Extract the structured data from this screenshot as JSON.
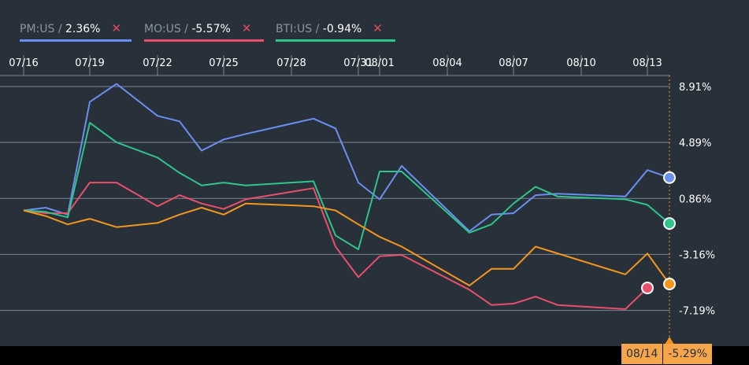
{
  "legend": [
    {
      "ticker": "PM:US",
      "sep": " / ",
      "value": "2.36%",
      "color": "#6a8ff0",
      "close": "✕"
    },
    {
      "ticker": "MO:US",
      "sep": " / ",
      "value": "-5.57%",
      "color": "#e94f6a",
      "close": "✕"
    },
    {
      "ticker": "BTI:US",
      "sep": " / ",
      "value": "-0.94%",
      "color": "#2ec48a",
      "close": "✕"
    }
  ],
  "tooltip": {
    "date": "08/14",
    "value": "-5.29%"
  },
  "colors": {
    "bg": "#28303a",
    "grid": "#7d858f",
    "text": "#ffffff",
    "orange": "#f5961c",
    "crosshair": "#f5961c"
  },
  "chart_data": {
    "type": "line",
    "x_ticks": [
      "07/16",
      "07/19",
      "07/22",
      "07/25",
      "07/28",
      "07/31",
      "08/01",
      "08/04",
      "08/07",
      "08/10",
      "08/13"
    ],
    "y_ticks": [
      "8.91%",
      "4.89%",
      "0.86%",
      "-3.16%",
      "-7.19%"
    ],
    "y_tick_values": [
      8.91,
      4.89,
      0.86,
      -3.16,
      -7.19
    ],
    "ylim": [
      -9.0,
      11.5
    ],
    "x_domain": [
      "07/16",
      "08/14"
    ],
    "series": [
      {
        "name": "PM:US",
        "color": "#6a8ff0",
        "dates": [
          "07/16",
          "07/17",
          "07/18",
          "07/19",
          "07/20",
          "07/22",
          "07/23",
          "07/24",
          "07/25",
          "07/26",
          "07/29",
          "07/30",
          "07/31",
          "08/01",
          "08/02",
          "08/05",
          "08/06",
          "08/07",
          "08/08",
          "08/09",
          "08/12",
          "08/13",
          "08/14"
        ],
        "values": [
          0.0,
          0.2,
          -0.3,
          7.8,
          9.1,
          6.8,
          6.4,
          4.3,
          5.1,
          5.5,
          6.6,
          5.9,
          2.0,
          0.8,
          3.2,
          -1.5,
          -0.3,
          -0.2,
          1.1,
          1.2,
          1.0,
          2.9,
          2.36
        ]
      },
      {
        "name": "MO:US",
        "color": "#e94f6a",
        "dates": [
          "07/16",
          "07/17",
          "07/18",
          "07/19",
          "07/20",
          "07/22",
          "07/23",
          "07/24",
          "07/25",
          "07/26",
          "07/29",
          "07/30",
          "07/31",
          "08/01",
          "08/02",
          "08/05",
          "08/06",
          "08/07",
          "08/08",
          "08/09",
          "08/12",
          "08/13"
        ],
        "values": [
          0.0,
          -0.2,
          -0.2,
          2.0,
          2.0,
          0.3,
          1.1,
          0.5,
          0.1,
          0.8,
          1.6,
          -2.6,
          -4.8,
          -3.3,
          -3.2,
          -5.7,
          -6.8,
          -6.7,
          -6.2,
          -6.8,
          -7.1,
          -5.57
        ]
      },
      {
        "name": "BTI:US",
        "color": "#2ec48a",
        "dates": [
          "07/16",
          "07/17",
          "07/18",
          "07/19",
          "07/20",
          "07/22",
          "07/23",
          "07/24",
          "07/25",
          "07/26",
          "07/29",
          "07/30",
          "07/31",
          "08/01",
          "08/02",
          "08/05",
          "08/06",
          "08/07",
          "08/08",
          "08/09",
          "08/12",
          "08/13",
          "08/14"
        ],
        "values": [
          0.0,
          -0.1,
          -0.5,
          6.3,
          4.9,
          3.8,
          2.7,
          1.8,
          2.0,
          1.8,
          2.1,
          -1.8,
          -2.8,
          2.8,
          2.8,
          -1.6,
          -1.0,
          0.5,
          1.7,
          1.0,
          0.8,
          0.4,
          -0.94
        ]
      },
      {
        "name": "",
        "color": "#f5961c",
        "dates": [
          "07/16",
          "07/17",
          "07/18",
          "07/19",
          "07/20",
          "07/22",
          "07/23",
          "07/24",
          "07/25",
          "07/26",
          "07/29",
          "07/30",
          "07/31",
          "08/01",
          "08/02",
          "08/05",
          "08/06",
          "08/07",
          "08/08",
          "08/12",
          "08/13",
          "08/14"
        ],
        "values": [
          0.0,
          -0.4,
          -1.0,
          -0.6,
          -1.2,
          -0.9,
          -0.3,
          0.2,
          -0.3,
          0.5,
          0.3,
          0.0,
          -1.0,
          -1.9,
          -2.6,
          -5.4,
          -4.2,
          -4.2,
          -2.6,
          -4.6,
          -3.1,
          -5.29
        ]
      }
    ]
  }
}
